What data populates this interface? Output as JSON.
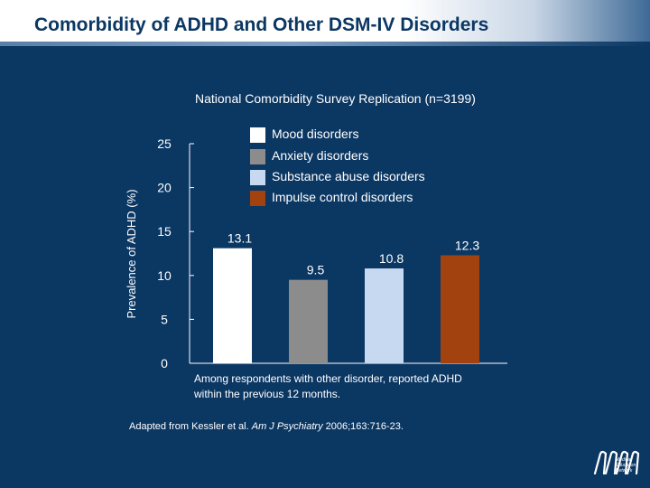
{
  "slide": {
    "title": "Comorbidity of ADHD and Other DSM-IV Disorders",
    "subtitle": "National Comorbidity Survey Replication (n=3199)",
    "note": "Among respondents with other disorder, reported ADHD within the previous 12 months.",
    "source_prefix": "Adapted from Kessler et al. ",
    "source_journal": "Am J Psychiatry",
    "source_suffix": " 2006;163:716-23.",
    "logo_lines": [
      "Medical",
      "Education",
      "Network"
    ]
  },
  "colors": {
    "background": "#0b3763",
    "mood": "#ffffff",
    "anxiety": "#8c8c8c",
    "substance": "#c6d9f0",
    "impulse": "#a1420f"
  },
  "chart_data": {
    "type": "bar",
    "ylabel": "Prevalence of ADHD (%)",
    "xlabel": "",
    "ylim": [
      0,
      25
    ],
    "yticks": [
      0,
      5,
      10,
      15,
      20,
      25
    ],
    "categories": [
      "Mood disorders",
      "Anxiety disorders",
      "Substance abuse disorders",
      "Impulse control disorders"
    ],
    "values": [
      13.1,
      9.5,
      10.8,
      12.3
    ],
    "value_labels": [
      "13.1",
      "9.5",
      "10.8",
      "12.3"
    ],
    "legend": [
      {
        "label": "Mood disorders",
        "color": "#ffffff"
      },
      {
        "label": "Anxiety disorders",
        "color": "#8c8c8c"
      },
      {
        "label": "Substance abuse disorders",
        "color": "#c6d9f0"
      },
      {
        "label": "Impulse control disorders",
        "color": "#a1420f"
      }
    ]
  }
}
